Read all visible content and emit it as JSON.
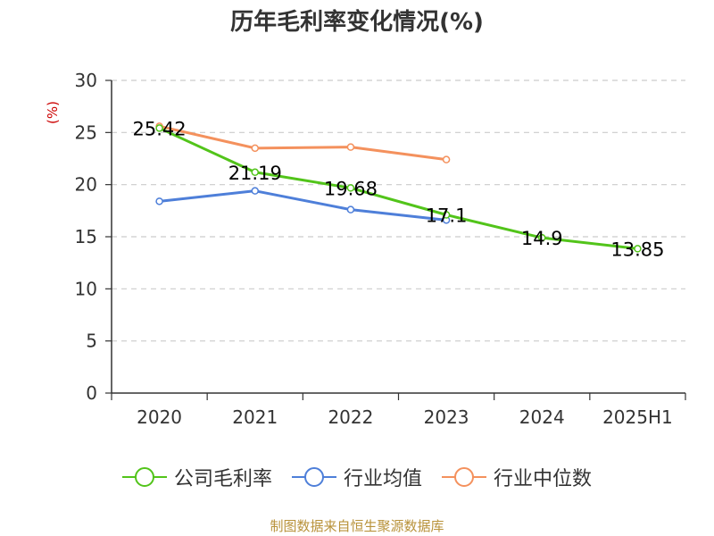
{
  "chart_data": {
    "type": "line",
    "title": "历年毛利率变化情况(%)",
    "ylabel": "(%)",
    "ylim": [
      0,
      30
    ],
    "yticks": [
      0,
      5,
      10,
      15,
      20,
      25,
      30
    ],
    "grid": true,
    "legend_position": "bottom",
    "categories": [
      "2020",
      "2021",
      "2022",
      "2023",
      "2024",
      "2025H1"
    ],
    "series": [
      {
        "name": "公司毛利率",
        "color": "#52c41a",
        "values": [
          25.42,
          21.19,
          19.68,
          17.1,
          14.9,
          13.85
        ],
        "data_labels": [
          "25.42",
          "21.19",
          "19.68",
          "17.1",
          "14.9",
          "13.85"
        ]
      },
      {
        "name": "行业均值",
        "color": "#4e7fd9",
        "values": [
          18.4,
          19.4,
          17.6,
          16.6,
          null,
          null
        ],
        "data_labels": []
      },
      {
        "name": "行业中位数",
        "color": "#f4915d",
        "values": [
          25.6,
          23.5,
          23.6,
          22.4,
          null,
          null
        ],
        "data_labels": []
      }
    ]
  },
  "footer": {
    "source": "制图数据来自恒生聚源数据库"
  },
  "colors": {
    "ylabel": "#cc0000",
    "axis": "#333333",
    "grid": "#cccccc"
  }
}
